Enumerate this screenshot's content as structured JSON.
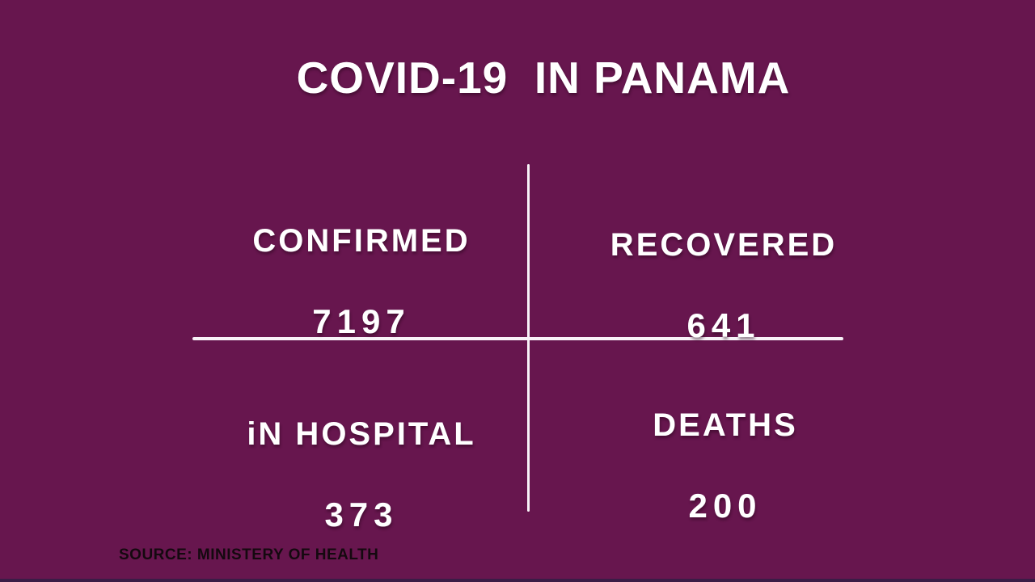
{
  "title": "COVID-19  IN PANAMA",
  "stats": {
    "confirmed": {
      "label": "CONFIRMED",
      "value": "7197"
    },
    "recovered": {
      "label": "RECOVERED",
      "value": "641"
    },
    "in_hospital": {
      "label": "iN HOSPITAL",
      "value": "373"
    },
    "deaths": {
      "label": "DEATHS",
      "value": "200"
    }
  },
  "source": "SOURCE: MINISTERY OF HEALTH",
  "colors": {
    "background": "#67164E",
    "text": "#FFFFFF",
    "divider": "#F8F3F8",
    "source_text": "#14090F",
    "bottom_strip": "#3A1C46"
  },
  "chart_data": {
    "type": "table",
    "title": "COVID-19  IN PANAMA",
    "categories": [
      "CONFIRMED",
      "RECOVERED",
      "iN HOSPITAL",
      "DEATHS"
    ],
    "values": [
      7197,
      641,
      373,
      200
    ]
  }
}
